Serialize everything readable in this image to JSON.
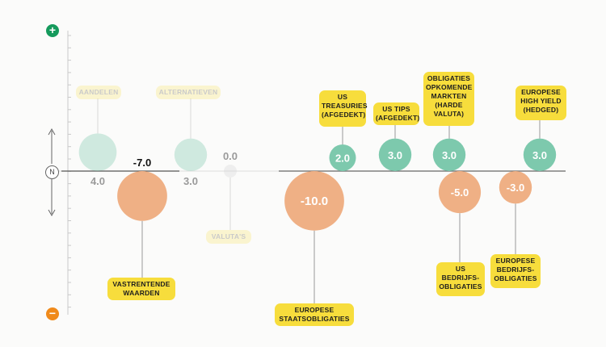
{
  "scale": {
    "positive_icon": "+",
    "negative_icon": "−",
    "neutral_label": "N"
  },
  "colors": {
    "green": "#7dc9ad",
    "orange": "#efb085",
    "gray": "#d6d6d6",
    "label_bg": "#f7dd3c"
  },
  "chart_data": {
    "type": "bubble",
    "zero_line": true,
    "series": [
      {
        "labels": [
          "AANDELEN"
        ],
        "value": 4.0,
        "value_label": "4.0",
        "faded": true
      },
      {
        "labels": [
          "VASTRENTENDE",
          "WAARDEN"
        ],
        "value": -7.0,
        "value_label": "-7.0",
        "faded": false
      },
      {
        "labels": [
          "ALTERNATIEVEN"
        ],
        "value": 3.0,
        "value_label": "3.0",
        "faded": true
      },
      {
        "labels": [
          "VALUTA'S"
        ],
        "value": 0.0,
        "value_label": "0.0",
        "faded": true
      },
      {
        "labels": [
          "EUROPESE",
          "STAATSOBLIGATIES"
        ],
        "value": -10.0,
        "value_label": "-10.0",
        "faded": false
      },
      {
        "labels": [
          "US",
          "TREASURIES",
          "(AFGEDEKT)"
        ],
        "value": 2.0,
        "value_label": "2.0",
        "faded": false
      },
      {
        "labels": [
          "US TIPS",
          "(AFGEDEKT)"
        ],
        "value": 3.0,
        "value_label": "3.0",
        "faded": false
      },
      {
        "labels": [
          "OBLIGATIES",
          "OPKOMENDE",
          "MARKTEN",
          "(HARDE",
          "VALUTA)"
        ],
        "value": 3.0,
        "value_label": "3.0",
        "faded": false
      },
      {
        "labels": [
          "US",
          "BEDRIJFS-",
          "OBLIGATIES"
        ],
        "value": -5.0,
        "value_label": "-5.0",
        "faded": false
      },
      {
        "labels": [
          "EUROPESE",
          "HIGH YIELD",
          "(HEDGED)"
        ],
        "value": 3.0,
        "value_label": "3.0",
        "faded": false
      },
      {
        "labels": [
          "EUROPESE",
          "BEDRIJFS-",
          "OBLIGATIES"
        ],
        "value": -3.0,
        "value_label": "-3.0",
        "faded": false
      }
    ]
  }
}
